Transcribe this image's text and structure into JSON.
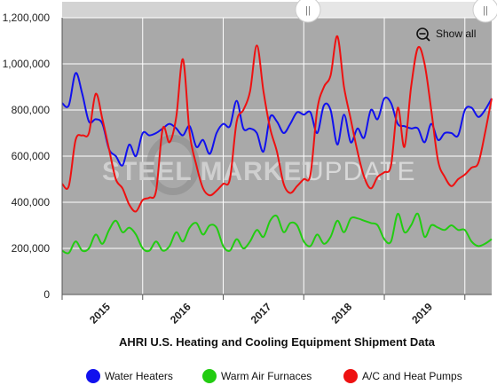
{
  "chart_data": {
    "type": "line",
    "title": "AHRI U.S. Heating and Cooling Equipment Shipment Data",
    "xlabel": "",
    "ylabel": "",
    "ylim": [
      0,
      1200000
    ],
    "y_ticks": [
      0,
      200000,
      400000,
      600000,
      800000,
      1000000,
      1200000
    ],
    "y_tick_labels": [
      "0",
      "200,000",
      "400,000",
      "600,000",
      "800,000",
      "1,000,000",
      "1,200,000"
    ],
    "x_ticks": [
      {
        "x": 2015.5,
        "label": "2015"
      },
      {
        "x": 2016.5,
        "label": "2016"
      },
      {
        "x": 2017.5,
        "label": "2017"
      },
      {
        "x": 2018.5,
        "label": "2018"
      },
      {
        "x": 2019.5,
        "label": "2019"
      }
    ],
    "x_range": [
      2015.0,
      2020.333
    ],
    "grid": true,
    "legend_position": "bottom",
    "series": [
      {
        "name": "Water Heaters",
        "color": "#1111ee",
        "points": [
          [
            2015.0,
            830000
          ],
          [
            2015.083,
            820000
          ],
          [
            2015.167,
            960000
          ],
          [
            2015.25,
            870000
          ],
          [
            2015.333,
            750000
          ],
          [
            2015.417,
            760000
          ],
          [
            2015.5,
            740000
          ],
          [
            2015.583,
            630000
          ],
          [
            2015.667,
            600000
          ],
          [
            2015.75,
            560000
          ],
          [
            2015.833,
            650000
          ],
          [
            2015.917,
            600000
          ],
          [
            2016.0,
            700000
          ],
          [
            2016.083,
            690000
          ],
          [
            2016.167,
            700000
          ],
          [
            2016.25,
            720000
          ],
          [
            2016.333,
            740000
          ],
          [
            2016.417,
            720000
          ],
          [
            2016.5,
            690000
          ],
          [
            2016.583,
            730000
          ],
          [
            2016.667,
            640000
          ],
          [
            2016.75,
            670000
          ],
          [
            2016.833,
            610000
          ],
          [
            2016.917,
            700000
          ],
          [
            2017.0,
            740000
          ],
          [
            2017.083,
            730000
          ],
          [
            2017.167,
            840000
          ],
          [
            2017.25,
            720000
          ],
          [
            2017.333,
            720000
          ],
          [
            2017.417,
            700000
          ],
          [
            2017.5,
            620000
          ],
          [
            2017.583,
            770000
          ],
          [
            2017.667,
            750000
          ],
          [
            2017.75,
            700000
          ],
          [
            2017.833,
            740000
          ],
          [
            2017.917,
            790000
          ],
          [
            2018.0,
            780000
          ],
          [
            2018.083,
            790000
          ],
          [
            2018.167,
            700000
          ],
          [
            2018.25,
            820000
          ],
          [
            2018.333,
            800000
          ],
          [
            2018.417,
            650000
          ],
          [
            2018.5,
            780000
          ],
          [
            2018.583,
            660000
          ],
          [
            2018.667,
            720000
          ],
          [
            2018.75,
            680000
          ],
          [
            2018.833,
            800000
          ],
          [
            2018.917,
            760000
          ],
          [
            2019.0,
            850000
          ],
          [
            2019.083,
            830000
          ],
          [
            2019.167,
            740000
          ],
          [
            2019.25,
            730000
          ],
          [
            2019.333,
            720000
          ],
          [
            2019.417,
            720000
          ],
          [
            2019.5,
            660000
          ],
          [
            2019.583,
            740000
          ],
          [
            2019.667,
            670000
          ],
          [
            2019.75,
            700000
          ],
          [
            2019.833,
            700000
          ],
          [
            2019.917,
            690000
          ],
          [
            2020.0,
            800000
          ],
          [
            2020.083,
            810000
          ],
          [
            2020.167,
            770000
          ],
          [
            2020.25,
            800000
          ],
          [
            2020.333,
            850000
          ]
        ]
      },
      {
        "name": "Warm Air Furnaces",
        "color": "#22cc11",
        "points": [
          [
            2015.0,
            190000
          ],
          [
            2015.083,
            180000
          ],
          [
            2015.167,
            230000
          ],
          [
            2015.25,
            190000
          ],
          [
            2015.333,
            200000
          ],
          [
            2015.417,
            260000
          ],
          [
            2015.5,
            220000
          ],
          [
            2015.583,
            280000
          ],
          [
            2015.667,
            320000
          ],
          [
            2015.75,
            270000
          ],
          [
            2015.833,
            290000
          ],
          [
            2015.917,
            260000
          ],
          [
            2016.0,
            200000
          ],
          [
            2016.083,
            190000
          ],
          [
            2016.167,
            230000
          ],
          [
            2016.25,
            190000
          ],
          [
            2016.333,
            210000
          ],
          [
            2016.417,
            270000
          ],
          [
            2016.5,
            230000
          ],
          [
            2016.583,
            290000
          ],
          [
            2016.667,
            310000
          ],
          [
            2016.75,
            260000
          ],
          [
            2016.833,
            300000
          ],
          [
            2016.917,
            290000
          ],
          [
            2017.0,
            210000
          ],
          [
            2017.083,
            190000
          ],
          [
            2017.167,
            240000
          ],
          [
            2017.25,
            200000
          ],
          [
            2017.333,
            230000
          ],
          [
            2017.417,
            280000
          ],
          [
            2017.5,
            250000
          ],
          [
            2017.583,
            320000
          ],
          [
            2017.667,
            340000
          ],
          [
            2017.75,
            270000
          ],
          [
            2017.833,
            310000
          ],
          [
            2017.917,
            300000
          ],
          [
            2018.0,
            230000
          ],
          [
            2018.083,
            210000
          ],
          [
            2018.167,
            260000
          ],
          [
            2018.25,
            220000
          ],
          [
            2018.333,
            250000
          ],
          [
            2018.417,
            320000
          ],
          [
            2018.5,
            270000
          ],
          [
            2018.583,
            330000
          ],
          [
            2018.667,
            330000
          ],
          [
            2018.75,
            320000
          ],
          [
            2018.833,
            310000
          ],
          [
            2018.917,
            300000
          ],
          [
            2019.0,
            240000
          ],
          [
            2019.083,
            230000
          ],
          [
            2019.167,
            350000
          ],
          [
            2019.25,
            270000
          ],
          [
            2019.333,
            300000
          ],
          [
            2019.417,
            350000
          ],
          [
            2019.5,
            250000
          ],
          [
            2019.583,
            300000
          ],
          [
            2019.667,
            290000
          ],
          [
            2019.75,
            280000
          ],
          [
            2019.833,
            300000
          ],
          [
            2019.917,
            280000
          ],
          [
            2020.0,
            280000
          ],
          [
            2020.083,
            230000
          ],
          [
            2020.167,
            210000
          ],
          [
            2020.25,
            220000
          ],
          [
            2020.333,
            240000
          ]
        ]
      },
      {
        "name": "A/C and Heat Pumps",
        "color": "#ee1111",
        "points": [
          [
            2015.0,
            480000
          ],
          [
            2015.083,
            470000
          ],
          [
            2015.167,
            670000
          ],
          [
            2015.25,
            690000
          ],
          [
            2015.333,
            700000
          ],
          [
            2015.417,
            870000
          ],
          [
            2015.5,
            760000
          ],
          [
            2015.583,
            630000
          ],
          [
            2015.667,
            500000
          ],
          [
            2015.75,
            460000
          ],
          [
            2015.833,
            390000
          ],
          [
            2015.917,
            360000
          ],
          [
            2016.0,
            410000
          ],
          [
            2016.083,
            420000
          ],
          [
            2016.167,
            450000
          ],
          [
            2016.25,
            720000
          ],
          [
            2016.333,
            660000
          ],
          [
            2016.417,
            770000
          ],
          [
            2016.5,
            1020000
          ],
          [
            2016.583,
            700000
          ],
          [
            2016.667,
            560000
          ],
          [
            2016.75,
            460000
          ],
          [
            2016.833,
            430000
          ],
          [
            2016.917,
            450000
          ],
          [
            2017.0,
            480000
          ],
          [
            2017.083,
            500000
          ],
          [
            2017.167,
            750000
          ],
          [
            2017.25,
            800000
          ],
          [
            2017.333,
            880000
          ],
          [
            2017.417,
            1080000
          ],
          [
            2017.5,
            880000
          ],
          [
            2017.583,
            720000
          ],
          [
            2017.667,
            620000
          ],
          [
            2017.75,
            480000
          ],
          [
            2017.833,
            440000
          ],
          [
            2017.917,
            470000
          ],
          [
            2018.0,
            500000
          ],
          [
            2018.083,
            520000
          ],
          [
            2018.167,
            800000
          ],
          [
            2018.25,
            900000
          ],
          [
            2018.333,
            950000
          ],
          [
            2018.417,
            1120000
          ],
          [
            2018.5,
            900000
          ],
          [
            2018.583,
            760000
          ],
          [
            2018.667,
            620000
          ],
          [
            2018.75,
            510000
          ],
          [
            2018.833,
            460000
          ],
          [
            2018.917,
            510000
          ],
          [
            2019.0,
            530000
          ],
          [
            2019.083,
            560000
          ],
          [
            2019.167,
            810000
          ],
          [
            2019.25,
            640000
          ],
          [
            2019.333,
            900000
          ],
          [
            2019.417,
            1070000
          ],
          [
            2019.5,
            1000000
          ],
          [
            2019.583,
            800000
          ],
          [
            2019.667,
            580000
          ],
          [
            2019.75,
            510000
          ],
          [
            2019.833,
            470000
          ],
          [
            2019.917,
            500000
          ],
          [
            2020.0,
            520000
          ],
          [
            2020.083,
            550000
          ],
          [
            2020.167,
            570000
          ],
          [
            2020.25,
            700000
          ],
          [
            2020.333,
            850000
          ]
        ]
      }
    ]
  },
  "controls": {
    "show_all_label": "Show all",
    "navigator_handle_glyph": "||"
  },
  "watermark": {
    "part1": "STEEL MARKET",
    "part2": "UPDATE"
  },
  "icons": {
    "zoom_out": "zoom-out-icon"
  }
}
